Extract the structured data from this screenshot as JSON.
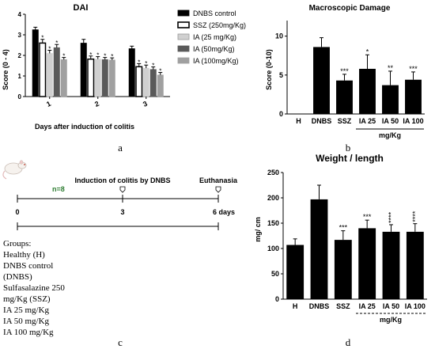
{
  "colors": {
    "black": "#000000",
    "white": "#ffffff",
    "light_gray": "#d0d0d0",
    "dark_gray": "#5a5a5a",
    "mid_gray": "#a0a0a0",
    "timeline_green": "#2e7d32"
  },
  "panel_labels": {
    "a": "a",
    "b": "b",
    "c": "c",
    "d": "d"
  },
  "chart_data": [
    {
      "type": "bar",
      "title": "DAI",
      "xlabel": "Days after induction of colitis",
      "ylabel": "Score (0 - 4)",
      "ylim": [
        0,
        4
      ],
      "yticks": [
        0,
        1,
        2,
        3,
        4
      ],
      "categories": [
        "1",
        "2",
        "3"
      ],
      "legend_position": "right",
      "series": [
        {
          "name": "DNBS control",
          "color": "#000000",
          "values": [
            3.25,
            2.6,
            2.33
          ],
          "errors": [
            0.12,
            0.18,
            0.12
          ],
          "stars": [
            "",
            "",
            ""
          ]
        },
        {
          "name": "SSZ (250mg/Kg)",
          "color": "#ffffff",
          "values": [
            2.6,
            1.82,
            1.45
          ],
          "errors": [
            0.18,
            0.15,
            0.15
          ],
          "stars": [
            "*",
            "*",
            "*"
          ]
        },
        {
          "name": "IA (25 mg/Kg)",
          "color": "#d0d0d0",
          "values": [
            2.1,
            1.82,
            1.38
          ],
          "errors": [
            0.15,
            0.12,
            0.15
          ],
          "stars": [
            "*",
            "*",
            "*"
          ]
        },
        {
          "name": "IA (50mg/Kg)",
          "color": "#5a5a5a",
          "values": [
            2.38,
            1.8,
            1.32
          ],
          "errors": [
            0.15,
            0.1,
            0.12
          ],
          "stars": [
            "*",
            "*",
            "*"
          ]
        },
        {
          "name": "IA (100mg/Kg)",
          "color": "#a0a0a0",
          "values": [
            1.8,
            1.78,
            1.05
          ],
          "errors": [
            0.1,
            0.1,
            0.12
          ],
          "stars": [
            "*",
            "*",
            "*"
          ]
        }
      ]
    },
    {
      "type": "bar",
      "title": "Macroscopic Damage",
      "ylabel": "Score (0-10)",
      "ylim": [
        0,
        12
      ],
      "yticks": [
        0,
        5,
        10
      ],
      "categories": [
        "H",
        "DNBS",
        "SSZ",
        "IA 25",
        "IA 50",
        "IA 100"
      ],
      "values": [
        0,
        8.6,
        4.3,
        5.8,
        3.7,
        4.4
      ],
      "errors": [
        0,
        1.2,
        0.8,
        1.8,
        1.8,
        1.0
      ],
      "stars": [
        "",
        "",
        "***",
        "*",
        "**",
        "***"
      ],
      "group_label": "mg/Kg"
    },
    {
      "type": "bar",
      "title": "Weight / length",
      "ylabel": "mg/ cm",
      "ylim": [
        0,
        250
      ],
      "yticks": [
        0,
        50,
        100,
        150,
        200,
        250
      ],
      "categories": [
        "H",
        "DNBS",
        "SSZ",
        "IA 25",
        "IA 50",
        "IA 100"
      ],
      "values": [
        107,
        197,
        117,
        140,
        133,
        133
      ],
      "errors": [
        12,
        28,
        18,
        16,
        14,
        16
      ],
      "stars": [
        "",
        "",
        "***",
        "***",
        "****",
        "****"
      ],
      "group_label": "mg/Kg"
    }
  ],
  "timeline": {
    "n_label": "n=8",
    "induction_label": "Induction of colitis  by DNBS",
    "euthanasia_label": "Euthanasia",
    "ticks": [
      "0",
      "3",
      "6 days"
    ],
    "groups_title": "Groups:",
    "groups": [
      "Healthy (H)",
      "DNBS control",
      "(DNBS)",
      "Sulfasalazine 250",
      "mg/Kg (SSZ)",
      "IA 25 mg/Kg",
      "IA 50 mg/Kg",
      "IA 100 mg/Kg"
    ]
  }
}
